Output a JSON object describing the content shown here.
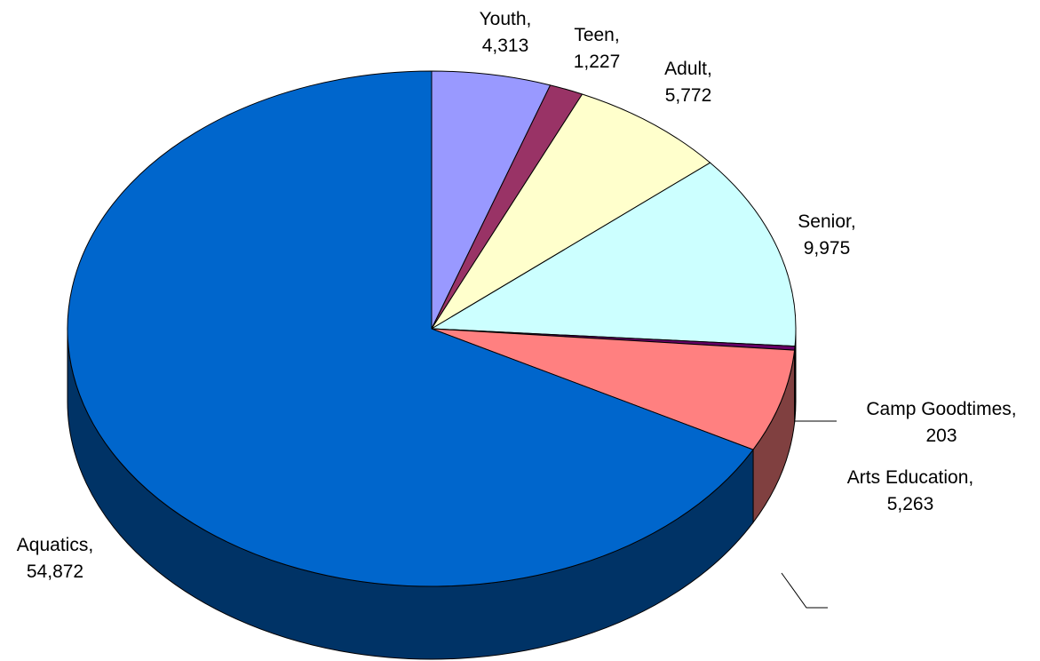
{
  "chart_data": {
    "type": "pie",
    "style": "3d",
    "title": "",
    "slices": [
      {
        "name": "Youth",
        "value": 4313,
        "label_name": "Youth,",
        "label_value": "4,313",
        "color": "#9999FF"
      },
      {
        "name": "Teen",
        "value": 1227,
        "label_name": "Teen,",
        "label_value": "1,227",
        "color": "#993366"
      },
      {
        "name": "Adult",
        "value": 5772,
        "label_name": "Adult,",
        "label_value": "5,772",
        "color": "#FFFFCC"
      },
      {
        "name": "Senior",
        "value": 9975,
        "label_name": "Senior,",
        "label_value": "9,975",
        "color": "#CCFFFF"
      },
      {
        "name": "Camp Goodtimes",
        "value": 203,
        "label_name": "Camp Goodtimes,",
        "label_value": "203",
        "color": "#660066"
      },
      {
        "name": "Arts Education",
        "value": 5263,
        "label_name": "Arts Education,",
        "label_value": "5,263",
        "color": "#FF8080"
      },
      {
        "name": "Aquatics",
        "value": 54872,
        "label_name": "Aquatics,",
        "label_value": "54,872",
        "color": "#0066CC"
      }
    ]
  }
}
